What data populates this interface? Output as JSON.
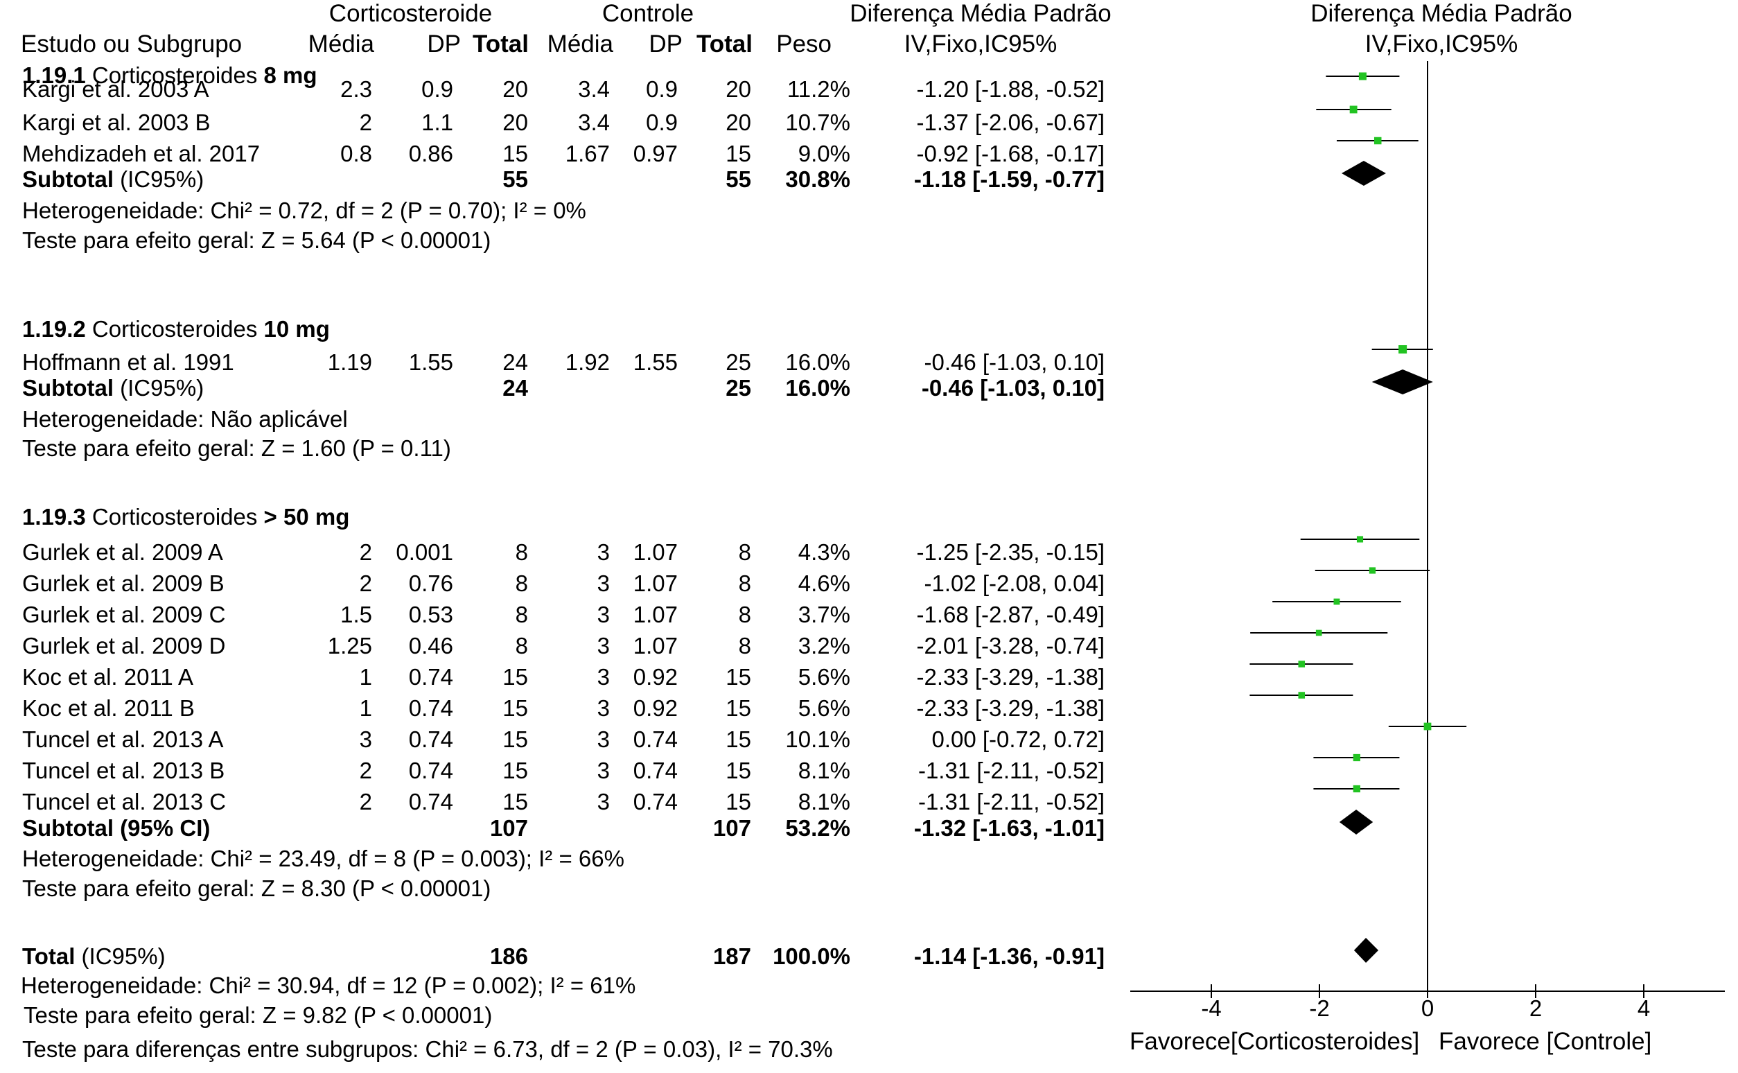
{
  "headers": {
    "study": "Estudo ou Subgrupo",
    "group_treat": "Corticosteroide",
    "group_ctrl": "Controle",
    "mean": "Média",
    "sd": "DP",
    "total": "Total",
    "weight": "Peso",
    "smd_title": "Diferença Média Padrão",
    "smd_method": "IV,Fixo,IC95%"
  },
  "groups": [
    {
      "code": "1.19.1",
      "name": "Corticosteroides",
      "dose": "8 mg",
      "studies": [
        {
          "name": "Kargi et al. 2003 A",
          "t_mean": "2.3",
          "t_sd": "0.9",
          "t_n": "20",
          "c_mean": "3.4",
          "c_sd": "0.9",
          "c_n": "20",
          "weight": "11.2%",
          "ci": "-1.20 [-1.88, -0.52]"
        },
        {
          "name": "Kargi et al. 2003 B",
          "t_mean": "2",
          "t_sd": "1.1",
          "t_n": "20",
          "c_mean": "3.4",
          "c_sd": "0.9",
          "c_n": "20",
          "weight": "10.7%",
          "ci": "-1.37 [-2.06, -0.67]"
        },
        {
          "name": "Mehdizadeh et al. 2017",
          "t_mean": "0.8",
          "t_sd": "0.86",
          "t_n": "15",
          "c_mean": "1.67",
          "c_sd": "0.97",
          "c_n": "15",
          "weight": "9.0%",
          "ci": "-0.92 [-1.68, -0.17]"
        }
      ],
      "subtotal": {
        "label": "Subtotal",
        "label_suffix": " (IC95%)",
        "t_n": "55",
        "c_n": "55",
        "weight": "30.8%",
        "ci": "-1.18 [-1.59, -0.77]"
      },
      "heterogeneity": "Heterogeneidade: Chi² = 0.72, df = 2 (P = 0.70); I² = 0%",
      "overall_test": "Teste para efeito geral: Z = 5.64 (P < 0.00001)"
    },
    {
      "code": "1.19.2",
      "name": "Corticosteroides",
      "dose": "10 mg",
      "studies": [
        {
          "name": "Hoffmann et al. 1991",
          "t_mean": "1.19",
          "t_sd": "1.55",
          "t_n": "24",
          "c_mean": "1.92",
          "c_sd": "1.55",
          "c_n": "25",
          "weight": "16.0%",
          "ci": "-0.46 [-1.03, 0.10]"
        }
      ],
      "subtotal": {
        "label": "Subtotal",
        "label_suffix": " (IC95%)",
        "t_n": "24",
        "c_n": "25",
        "weight": "16.0%",
        "ci": "-0.46 [-1.03, 0.10]"
      },
      "heterogeneity": "Heterogeneidade: Não aplicável",
      "overall_test": "Teste para efeito geral: Z = 1.60 (P = 0.11)"
    },
    {
      "code": "1.19.3",
      "name": "Corticosteroides",
      "dose": "> 50 mg",
      "studies": [
        {
          "name": "Gurlek et al. 2009 A",
          "t_mean": "2",
          "t_sd": "0.001",
          "t_n": "8",
          "c_mean": "3",
          "c_sd": "1.07",
          "c_n": "8",
          "weight": "4.3%",
          "ci": "-1.25 [-2.35, -0.15]"
        },
        {
          "name": "Gurlek et al. 2009 B",
          "t_mean": "2",
          "t_sd": "0.76",
          "t_n": "8",
          "c_mean": "3",
          "c_sd": "1.07",
          "c_n": "8",
          "weight": "4.6%",
          "ci": "-1.02 [-2.08, 0.04]"
        },
        {
          "name": "Gurlek et al. 2009 C",
          "t_mean": "1.5",
          "t_sd": "0.53",
          "t_n": "8",
          "c_mean": "3",
          "c_sd": "1.07",
          "c_n": "8",
          "weight": "3.7%",
          "ci": "-1.68 [-2.87, -0.49]"
        },
        {
          "name": "Gurlek et al. 2009 D",
          "t_mean": "1.25",
          "t_sd": "0.46",
          "t_n": "8",
          "c_mean": "3",
          "c_sd": "1.07",
          "c_n": "8",
          "weight": "3.2%",
          "ci": "-2.01 [-3.28, -0.74]"
        },
        {
          "name": "Koc et al. 2011 A",
          "t_mean": "1",
          "t_sd": "0.74",
          "t_n": "15",
          "c_mean": "3",
          "c_sd": "0.92",
          "c_n": "15",
          "weight": "5.6%",
          "ci": "-2.33 [-3.29, -1.38]"
        },
        {
          "name": "Koc et al. 2011 B",
          "t_mean": "1",
          "t_sd": "0.74",
          "t_n": "15",
          "c_mean": "3",
          "c_sd": "0.92",
          "c_n": "15",
          "weight": "5.6%",
          "ci": "-2.33 [-3.29, -1.38]"
        },
        {
          "name": "Tuncel et al. 2013 A",
          "t_mean": "3",
          "t_sd": "0.74",
          "t_n": "15",
          "c_mean": "3",
          "c_sd": "0.74",
          "c_n": "15",
          "weight": "10.1%",
          "ci": "0.00 [-0.72, 0.72]"
        },
        {
          "name": "Tuncel et al. 2013 B",
          "t_mean": "2",
          "t_sd": "0.74",
          "t_n": "15",
          "c_mean": "3",
          "c_sd": "0.74",
          "c_n": "15",
          "weight": "8.1%",
          "ci": "-1.31 [-2.11, -0.52]"
        },
        {
          "name": "Tuncel et al. 2013 C",
          "t_mean": "2",
          "t_sd": "0.74",
          "t_n": "15",
          "c_mean": "3",
          "c_sd": "0.74",
          "c_n": "15",
          "weight": "8.1%",
          "ci": "-1.31 [-2.11, -0.52]"
        }
      ],
      "subtotal": {
        "label": "Subtotal (95% CI)",
        "label_suffix": "",
        "t_n": "107",
        "c_n": "107",
        "weight": "53.2%",
        "ci": "-1.32 [-1.63, -1.01]"
      },
      "heterogeneity": "Heterogeneidade: Chi² = 23.49, df = 8 (P = 0.003); I² = 66%",
      "overall_test": "Teste para efeito geral: Z = 8.30 (P < 0.00001)"
    }
  ],
  "total": {
    "label": "Total",
    "label_suffix": " (IC95%)",
    "t_n": "186",
    "c_n": "187",
    "weight": "100.0%",
    "ci": "-1.14 [-1.36, -0.91]",
    "heterogeneity": "Heterogeneidade: Chi² = 30.94, df = 12 (P = 0.002); I² = 61%",
    "overall_test": "Teste para efeito geral: Z = 9.82 (P < 0.00001)",
    "subgroup_test": "Teste para diferenças entre subgrupos: Chi² = 6.73, df = 2 (P = 0.03), I² = 70.3%"
  },
  "colors": {
    "study_marker": "#22c322",
    "line": "#000000",
    "diamond": "#000000"
  },
  "chart_data": {
    "type": "forest",
    "title": "Diferença Média Padrão",
    "subtitle": "IV,Fixo,IC95%",
    "xlim": [
      -5.5,
      5.5
    ],
    "xticks": [
      -4,
      -2,
      0,
      2,
      4
    ],
    "xtick_labels": [
      "-4",
      "-2",
      "0",
      "2",
      "4"
    ],
    "left_label": "Favorece[Corticosteroides]",
    "right_label": "Favorece [Controle]",
    "null_line": 0,
    "studies": [
      {
        "name": "Kargi et al. 2003 A",
        "est": -1.2,
        "lo": -1.88,
        "hi": -0.52,
        "weight": 11.2
      },
      {
        "name": "Kargi et al. 2003 B",
        "est": -1.37,
        "lo": -2.06,
        "hi": -0.67,
        "weight": 10.7
      },
      {
        "name": "Mehdizadeh et al. 2017",
        "est": -0.92,
        "lo": -1.68,
        "hi": -0.17,
        "weight": 9.0
      },
      {
        "name": "Hoffmann et al. 1991",
        "est": -0.46,
        "lo": -1.03,
        "hi": 0.1,
        "weight": 16.0
      },
      {
        "name": "Gurlek et al. 2009 A",
        "est": -1.25,
        "lo": -2.35,
        "hi": -0.15,
        "weight": 4.3
      },
      {
        "name": "Gurlek et al. 2009 B",
        "est": -1.02,
        "lo": -2.08,
        "hi": 0.04,
        "weight": 4.6
      },
      {
        "name": "Gurlek et al. 2009 C",
        "est": -1.68,
        "lo": -2.87,
        "hi": -0.49,
        "weight": 3.7
      },
      {
        "name": "Gurlek et al. 2009 D",
        "est": -2.01,
        "lo": -3.28,
        "hi": -0.74,
        "weight": 3.2
      },
      {
        "name": "Koc et al. 2011 A",
        "est": -2.33,
        "lo": -3.29,
        "hi": -1.38,
        "weight": 5.6
      },
      {
        "name": "Koc et al. 2011 B",
        "est": -2.33,
        "lo": -3.29,
        "hi": -1.38,
        "weight": 5.6
      },
      {
        "name": "Tuncel et al. 2013 A",
        "est": 0.0,
        "lo": -0.72,
        "hi": 0.72,
        "weight": 10.1
      },
      {
        "name": "Tuncel et al. 2013 B",
        "est": -1.31,
        "lo": -2.11,
        "hi": -0.52,
        "weight": 8.1
      },
      {
        "name": "Tuncel et al. 2013 C",
        "est": -1.31,
        "lo": -2.11,
        "hi": -0.52,
        "weight": 8.1
      }
    ],
    "pooled": [
      {
        "name": "Subtotal 1.19.1",
        "est": -1.18,
        "lo": -1.59,
        "hi": -0.77
      },
      {
        "name": "Subtotal 1.19.2",
        "est": -0.46,
        "lo": -1.03,
        "hi": 0.1
      },
      {
        "name": "Subtotal 1.19.3",
        "est": -1.32,
        "lo": -1.63,
        "hi": -1.01
      },
      {
        "name": "Total",
        "est": -1.14,
        "lo": -1.36,
        "hi": -0.91
      }
    ]
  }
}
